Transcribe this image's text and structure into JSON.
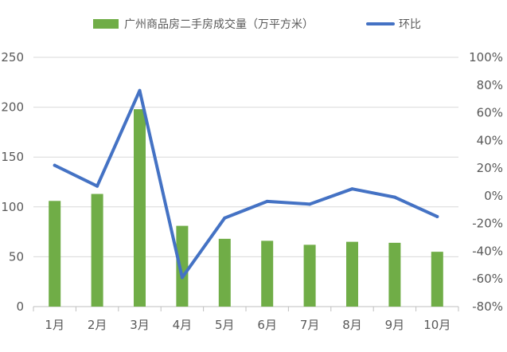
{
  "chart_data": {
    "type": "bar+line",
    "categories": [
      "1月",
      "2月",
      "3月",
      "4月",
      "5月",
      "6月",
      "7月",
      "8月",
      "9月",
      "10月"
    ],
    "series": [
      {
        "name": "广州商品房二手房成交量（万平方米）",
        "type": "bar",
        "axis": "left",
        "color": "#70ad47",
        "values": [
          106,
          113,
          198,
          81,
          68,
          66,
          62,
          65,
          64,
          55
        ]
      },
      {
        "name": "环比",
        "type": "line",
        "axis": "right",
        "color": "#4472c4",
        "values": [
          22,
          7,
          76,
          -59,
          -16,
          -4,
          -6,
          5,
          -1,
          -15
        ]
      }
    ],
    "y_left": {
      "min": 0,
      "max": 250,
      "ticks": [
        0,
        50,
        100,
        150,
        200,
        250
      ],
      "tick_labels": [
        "0",
        "50",
        "100",
        "150",
        "200",
        "250"
      ]
    },
    "y_right": {
      "min": -80,
      "max": 100,
      "ticks": [
        -80,
        -60,
        -40,
        -20,
        0,
        20,
        40,
        60,
        80,
        100
      ],
      "tick_labels": [
        "-80%",
        "-60%",
        "-40%",
        "-20%",
        "0%",
        "20%",
        "40%",
        "60%",
        "80%",
        "100%"
      ]
    },
    "grid": "horizontal",
    "legend": "top-center"
  }
}
